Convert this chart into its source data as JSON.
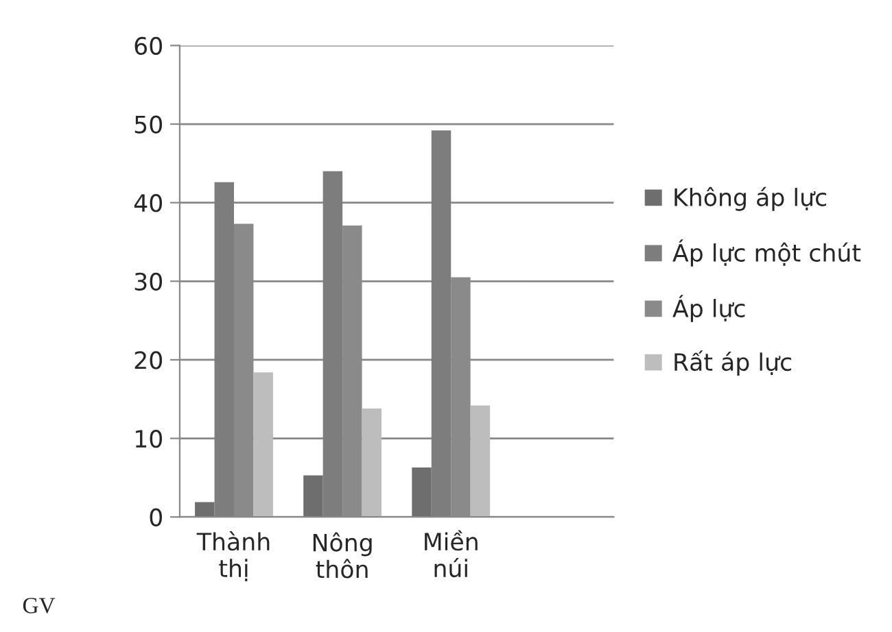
{
  "chart_data": {
    "type": "bar",
    "categories": [
      "Thành thị",
      "Nông thôn",
      "Miền núi",
      null
    ],
    "series": [
      {
        "name": "Không áp lực",
        "color": "#6e6e6e",
        "values": [
          1.9,
          5.3,
          6.3,
          null
        ]
      },
      {
        "name": "Áp lực một chút",
        "color": "#7d7d7d",
        "values": [
          42.6,
          44.0,
          49.2,
          null
        ]
      },
      {
        "name": "Áp lực",
        "color": "#8a8a8a",
        "values": [
          37.3,
          37.1,
          30.5,
          null
        ]
      },
      {
        "name": "Rất áp lực",
        "color": "#bdbdbd",
        "values": [
          18.4,
          13.8,
          14.2,
          null
        ]
      }
    ],
    "ylim": [
      0,
      60
    ],
    "yticks": [
      0,
      10,
      20,
      30,
      40,
      50,
      60
    ],
    "grid": "y",
    "legend": "right",
    "annotations": [
      "GV"
    ]
  }
}
